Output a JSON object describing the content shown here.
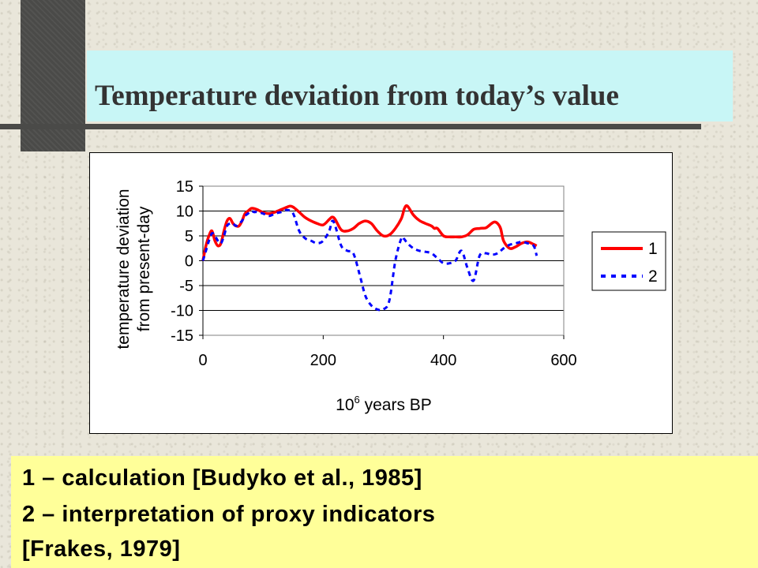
{
  "slide": {
    "title": "Temperature deviation from today’s value",
    "caption_lines": [
      "1 – calculation [Budyko et al., 1985]",
      "2 –  interpretation of proxy indicators",
      "[Frakes, 1979]"
    ],
    "colors": {
      "title_box": "#c8f6f6",
      "caption_box": "#ffff99",
      "deco": "#4a4a48",
      "series_1": "#ff0000",
      "series_2": "#0000ff"
    }
  },
  "chart_data": {
    "type": "line",
    "title": "",
    "ylabel_lines": [
      "temperature deviation",
      "from present-day"
    ],
    "xlabel_base": "10",
    "xlabel_exp": "6",
    "xlabel_rest": " years BP",
    "xlim": [
      0,
      600
    ],
    "ylim": [
      -15,
      15
    ],
    "xticks": [
      "0",
      "200",
      "400",
      "600"
    ],
    "yticks": [
      "15",
      "10",
      "5",
      "0",
      "-5",
      "-10",
      "-15"
    ],
    "grid": "horizontal",
    "legend_position": "right",
    "series": [
      {
        "name": "1",
        "color": "#ff0000",
        "style": "solid",
        "x": [
          0,
          5,
          10,
          15,
          20,
          25,
          30,
          35,
          40,
          45,
          50,
          55,
          60,
          65,
          70,
          75,
          80,
          85,
          90,
          95,
          100,
          110,
          120,
          130,
          140,
          145,
          150,
          160,
          170,
          180,
          190,
          200,
          210,
          215,
          220,
          230,
          240,
          250,
          260,
          270,
          280,
          290,
          300,
          310,
          320,
          330,
          335,
          340,
          350,
          360,
          370,
          380,
          385,
          390,
          400,
          410,
          420,
          430,
          440,
          450,
          460,
          470,
          475,
          480,
          485,
          490,
          495,
          500,
          510,
          520,
          530,
          540,
          550,
          555
        ],
        "y": [
          0,
          3,
          5,
          6,
          4,
          3,
          3.5,
          6,
          8,
          8.5,
          7.5,
          7,
          7,
          8,
          9.5,
          10,
          10.5,
          10.5,
          10.3,
          10,
          9.7,
          9.5,
          9.8,
          10.3,
          10.8,
          11,
          10.8,
          9.8,
          8.7,
          8,
          7.5,
          7.2,
          8.3,
          8.8,
          8.3,
          6.2,
          6,
          6.5,
          7.5,
          8,
          7.5,
          6,
          5,
          5.2,
          6.5,
          8.5,
          10.5,
          11,
          9.2,
          8.1,
          7.5,
          7,
          6.5,
          6.5,
          5,
          4.8,
          4.8,
          4.8,
          5.2,
          6.3,
          6.5,
          6.6,
          7,
          7.5,
          7.8,
          7.5,
          6.5,
          4,
          2.5,
          2.8,
          3.5,
          3.8,
          3.3,
          3
        ],
        "values": [
          0,
          3,
          5,
          6,
          4,
          3,
          3.5,
          6,
          8,
          8.5,
          7.5,
          7,
          7,
          8,
          9.5,
          10,
          10.5,
          10.5,
          10.3,
          10,
          9.7,
          9.5,
          9.8,
          10.3,
          10.8,
          11,
          10.8,
          9.8,
          8.7,
          8,
          7.5,
          7.2,
          8.3,
          8.8,
          8.3,
          6.2,
          6,
          6.5,
          7.5,
          8,
          7.5,
          6,
          5,
          5.2,
          6.5,
          8.5,
          10.5,
          11,
          9.2,
          8.1,
          7.5,
          7,
          6.5,
          6.5,
          5,
          4.8,
          4.8,
          4.8,
          5.2,
          6.3,
          6.5,
          6.6,
          7,
          7.5,
          7.8,
          7.5,
          6.5,
          4,
          2.5,
          2.8,
          3.5,
          3.8,
          3.3,
          3
        ]
      },
      {
        "name": "2",
        "color": "#0000ff",
        "style": "dashed",
        "x": [
          0,
          5,
          10,
          15,
          20,
          25,
          30,
          35,
          40,
          45,
          50,
          55,
          60,
          65,
          70,
          75,
          80,
          85,
          90,
          100,
          110,
          120,
          130,
          140,
          150,
          160,
          170,
          180,
          190,
          200,
          210,
          215,
          220,
          230,
          240,
          250,
          260,
          270,
          280,
          290,
          300,
          310,
          320,
          330,
          335,
          340,
          350,
          360,
          370,
          380,
          390,
          400,
          410,
          420,
          430,
          440,
          450,
          460,
          470,
          480,
          490,
          500,
          510,
          520,
          530,
          540,
          550,
          555
        ],
        "y": [
          0,
          2,
          4,
          5.5,
          5,
          4,
          3.5,
          5,
          7,
          7.5,
          7.5,
          7,
          7.5,
          8,
          9,
          9.5,
          10,
          9.8,
          9.8,
          9.5,
          9,
          9.5,
          9.8,
          10.2,
          9.5,
          6,
          4.5,
          4,
          3.5,
          4,
          6,
          8,
          7,
          3,
          2,
          1.5,
          -2.5,
          -7,
          -9,
          -9.8,
          -9.8,
          -8,
          0,
          4.5,
          4.3,
          3.5,
          2.5,
          2,
          1.8,
          1.5,
          0.5,
          -0.5,
          -0.5,
          0,
          2,
          -1.5,
          -4,
          1,
          1.5,
          1.2,
          1.5,
          2.5,
          3.2,
          3.5,
          3.8,
          3.5,
          3,
          1
        ]
      }
    ]
  }
}
